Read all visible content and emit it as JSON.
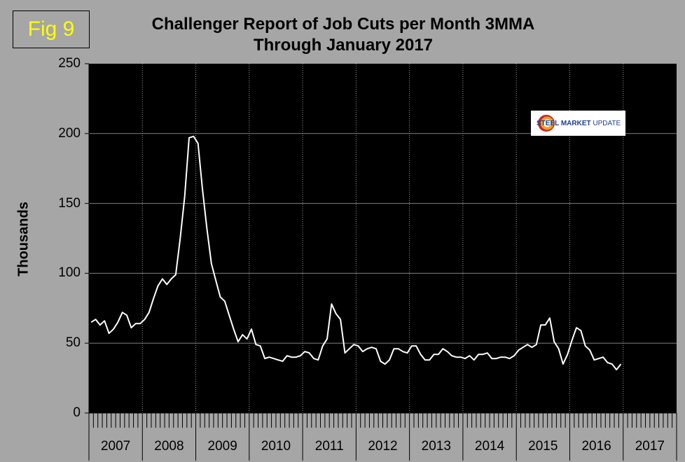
{
  "figure": {
    "label": "Fig 9"
  },
  "logo": {
    "name": "steel-market-update-logo",
    "text_bold": "STEEL MARKET",
    "text_regular": " UPDATE"
  },
  "colors": {
    "background": "#a6a6a6",
    "plot": "#000000",
    "line": "#ffffff",
    "fig_label": "#ffff00"
  },
  "chart_data": {
    "type": "line",
    "title": "Challenger Report of Job Cuts per Month 3MMA",
    "subtitle": "Through January 2017",
    "ylabel": "Thousands",
    "xlabel": "",
    "ylim": [
      0,
      250
    ],
    "yticks": [
      "0",
      "50",
      "100",
      "150",
      "200",
      "250"
    ],
    "xticks": [
      "2007",
      "2008",
      "2009",
      "2010",
      "2011",
      "2012",
      "2013",
      "2014",
      "2015",
      "2016",
      "2017"
    ],
    "grid": "vertical dotted lines at year boundaries, horizontal at y ticks",
    "series": [
      {
        "values": [
          65,
          67,
          63,
          66,
          57,
          60,
          65,
          72,
          70,
          61,
          64,
          64,
          67,
          72,
          82,
          91,
          96,
          92,
          96,
          99,
          125,
          155,
          197,
          198,
          193,
          160,
          132,
          107,
          95,
          83,
          80,
          70,
          60,
          51,
          56,
          53,
          60,
          49,
          48,
          39,
          40,
          39,
          38,
          37,
          41,
          40,
          40,
          41,
          44,
          43,
          39,
          38,
          48,
          53,
          78,
          71,
          67,
          43,
          46,
          49,
          48,
          44,
          46,
          47,
          46,
          37,
          35,
          38,
          46,
          46,
          44,
          43,
          48,
          48,
          42,
          38,
          38,
          42,
          42,
          46,
          44,
          41,
          40,
          40,
          39,
          41,
          38,
          42,
          42,
          43,
          39,
          39,
          40,
          40,
          39,
          41,
          45,
          47,
          49,
          47,
          49,
          63,
          63,
          68,
          51,
          46,
          35,
          42,
          52,
          61,
          59,
          48,
          45,
          38,
          39,
          40,
          36,
          35,
          31,
          35
        ]
      }
    ]
  }
}
